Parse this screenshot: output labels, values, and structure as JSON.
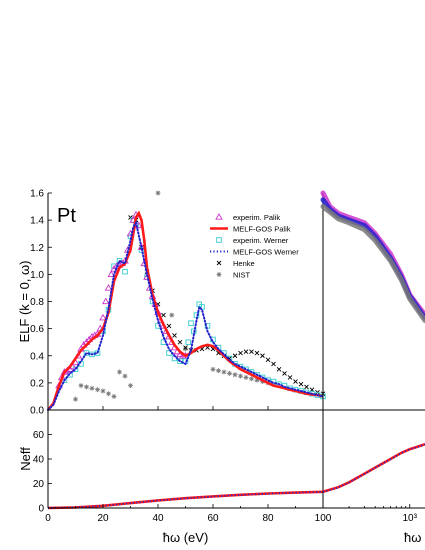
{
  "chart_data": [
    {
      "type": "line",
      "panel": "ELF linear energy range",
      "element_label": "Pt",
      "xlabel": "ħω (eV)",
      "ylabel": "ELF (k = 0, ω)",
      "xlim": [
        0,
        100
      ],
      "ylim": [
        0,
        1.6
      ],
      "x_ticks": [
        0,
        20,
        40,
        60,
        80,
        100
      ],
      "y_ticks": [
        0,
        0.2,
        0.4,
        0.6,
        0.8,
        1.0,
        1.2,
        1.4,
        1.6
      ],
      "y_tick_labels": [
        "0.0",
        "0.2",
        "0.4",
        "0.6",
        "0.8",
        "1.0",
        "1.2",
        "1.4",
        "1.6"
      ],
      "legend_position": "top-right",
      "series": [
        {
          "name": "experim. Palik",
          "marker": "triangle",
          "color": "#cc33cc",
          "x": [
            4,
            5,
            6,
            7,
            8,
            9,
            10,
            11,
            12,
            13,
            14,
            15,
            16,
            17,
            18,
            19,
            20,
            21,
            22,
            23,
            24,
            25,
            26,
            27,
            28,
            29,
            30,
            31,
            32,
            33,
            34,
            35,
            36,
            37,
            38,
            39,
            40,
            41,
            42,
            43,
            44,
            45,
            46,
            47,
            48,
            49,
            50
          ],
          "y": [
            0.18,
            0.24,
            0.28,
            0.29,
            0.3,
            0.32,
            0.35,
            0.4,
            0.45,
            0.48,
            0.5,
            0.52,
            0.54,
            0.55,
            0.56,
            0.6,
            0.68,
            0.8,
            0.9,
            1.0,
            1.04,
            1.06,
            1.07,
            1.08,
            1.1,
            1.18,
            1.3,
            1.4,
            1.44,
            1.36,
            1.2,
            1.08,
            0.98,
            0.9,
            0.84,
            0.78,
            0.72,
            0.66,
            0.62,
            0.58,
            0.54,
            0.5,
            0.46,
            0.43,
            0.41,
            0.4,
            0.4
          ]
        },
        {
          "name": "MELF-GOS Palik",
          "marker": "line",
          "color": "#ff1a1a",
          "x": [
            0,
            2,
            4,
            6,
            8,
            10,
            12,
            14,
            16,
            18,
            20,
            22,
            24,
            26,
            28,
            30,
            31,
            32,
            33,
            34,
            35,
            36,
            38,
            40,
            42,
            44,
            46,
            48,
            50,
            52,
            54,
            56,
            58,
            60,
            62,
            64,
            66,
            68,
            70,
            72,
            74,
            76,
            78,
            80,
            82,
            84,
            86,
            88,
            90,
            92,
            94,
            96,
            98,
            100
          ],
          "y": [
            0.0,
            0.05,
            0.18,
            0.28,
            0.32,
            0.38,
            0.44,
            0.48,
            0.52,
            0.55,
            0.6,
            0.72,
            0.95,
            1.05,
            1.08,
            1.18,
            1.3,
            1.42,
            1.45,
            1.4,
            1.25,
            1.05,
            0.85,
            0.72,
            0.63,
            0.55,
            0.48,
            0.43,
            0.4,
            0.42,
            0.45,
            0.47,
            0.48,
            0.47,
            0.44,
            0.4,
            0.36,
            0.33,
            0.3,
            0.28,
            0.26,
            0.24,
            0.22,
            0.2,
            0.18,
            0.17,
            0.16,
            0.15,
            0.14,
            0.13,
            0.12,
            0.115,
            0.11,
            0.1
          ]
        },
        {
          "name": "experim. Werner",
          "marker": "square",
          "color": "#33cccc",
          "x": [
            6,
            8,
            10,
            12,
            14,
            16,
            18,
            20,
            22,
            24,
            26,
            28,
            30,
            31,
            32,
            34,
            36,
            38,
            40,
            42,
            44,
            46,
            48,
            50,
            51,
            52,
            53,
            54,
            55,
            56,
            58,
            60,
            62,
            64,
            66,
            68,
            70,
            72,
            74,
            76,
            78,
            80,
            82,
            84,
            86,
            88,
            90,
            92,
            94,
            96,
            98,
            100
          ],
          "y": [
            0.22,
            0.26,
            0.3,
            0.34,
            0.42,
            0.41,
            0.42,
            0.58,
            0.74,
            1.06,
            1.1,
            1.02,
            1.28,
            1.4,
            1.36,
            1.18,
            0.98,
            0.8,
            0.62,
            0.5,
            0.42,
            0.38,
            0.36,
            0.36,
            0.5,
            0.64,
            0.58,
            0.7,
            0.78,
            0.76,
            0.62,
            0.52,
            0.46,
            0.42,
            0.38,
            0.34,
            0.32,
            0.3,
            0.28,
            0.26,
            0.24,
            0.22,
            0.21,
            0.19,
            0.18,
            0.16,
            0.15,
            0.14,
            0.13,
            0.12,
            0.11,
            0.1
          ]
        },
        {
          "name": "MELF-GOS Werner",
          "marker": "dotted-line",
          "color": "#2222cc",
          "x": [
            0,
            2,
            4,
            6,
            8,
            10,
            12,
            14,
            16,
            18,
            20,
            22,
            24,
            26,
            28,
            30,
            31,
            32,
            34,
            36,
            38,
            40,
            42,
            44,
            46,
            48,
            50,
            52,
            54,
            55,
            56,
            58,
            60,
            62,
            64,
            66,
            68,
            70,
            72,
            74,
            76,
            78,
            80,
            82,
            84,
            86,
            88,
            90,
            92,
            94,
            96,
            98,
            100
          ],
          "y": [
            0.0,
            0.04,
            0.14,
            0.22,
            0.27,
            0.3,
            0.36,
            0.42,
            0.41,
            0.42,
            0.55,
            0.75,
            1.0,
            1.1,
            1.08,
            1.25,
            1.35,
            1.38,
            1.2,
            1.0,
            0.82,
            0.66,
            0.54,
            0.45,
            0.4,
            0.36,
            0.34,
            0.44,
            0.66,
            0.76,
            0.74,
            0.58,
            0.5,
            0.45,
            0.41,
            0.37,
            0.34,
            0.32,
            0.3,
            0.28,
            0.26,
            0.24,
            0.22,
            0.2,
            0.19,
            0.17,
            0.16,
            0.15,
            0.14,
            0.13,
            0.12,
            0.11,
            0.1
          ]
        },
        {
          "name": "Henke",
          "marker": "x",
          "color": "#000000",
          "x": [
            30,
            32,
            34,
            36,
            38,
            40,
            42,
            44,
            46,
            48,
            50,
            52,
            54,
            56,
            58,
            60,
            62,
            64,
            66,
            68,
            70,
            72,
            74,
            76,
            78,
            80,
            82,
            84,
            86,
            88,
            90,
            92,
            94,
            96,
            98,
            100
          ],
          "y": [
            1.42,
            1.4,
            1.2,
            1.02,
            0.88,
            0.78,
            0.7,
            0.62,
            0.55,
            0.5,
            0.46,
            0.44,
            0.44,
            0.45,
            0.46,
            0.45,
            0.42,
            0.4,
            0.38,
            0.4,
            0.42,
            0.43,
            0.43,
            0.42,
            0.4,
            0.37,
            0.34,
            0.3,
            0.27,
            0.24,
            0.21,
            0.19,
            0.17,
            0.15,
            0.13,
            0.12
          ]
        },
        {
          "name": "NIST",
          "marker": "asterisk",
          "color": "#777777",
          "x": [
            10,
            12,
            14,
            16,
            18,
            20,
            22,
            24,
            26,
            28,
            30,
            40,
            45,
            50,
            60,
            62,
            64,
            66,
            68,
            70,
            72,
            74,
            76,
            78,
            80
          ],
          "y": [
            0.08,
            0.18,
            0.17,
            0.16,
            0.15,
            0.14,
            0.12,
            0.1,
            0.28,
            0.25,
            0.18,
            1.6,
            0.7,
            0.45,
            0.3,
            0.29,
            0.28,
            0.27,
            0.26,
            0.25,
            0.24,
            0.23,
            0.22,
            0.21,
            0.2
          ]
        }
      ]
    },
    {
      "type": "line",
      "panel": "ELF logarithmic energy range",
      "xlabel": "ħω",
      "xscale": "log",
      "xlim": [
        100,
        1500
      ],
      "ylim": [
        0,
        1.6
      ],
      "x_ticks": [
        100,
        1000
      ],
      "x_tick_labels": [
        "10²",
        "10³"
      ],
      "series": [
        {
          "name": "experim. Palik",
          "color": "#cc33cc",
          "x": [
            100,
            120,
            150,
            200,
            300,
            400,
            600,
            800,
            1000,
            1500
          ],
          "y": [
            1.6,
            1.5,
            1.45,
            1.42,
            1.38,
            1.3,
            1.15,
            1.0,
            0.85,
            0.7
          ]
        },
        {
          "name": "MELF-GOS Werner",
          "color": "#2222cc",
          "x": [
            100,
            120,
            150,
            200,
            300,
            400,
            600,
            800,
            1000,
            1500
          ],
          "y": [
            1.55,
            1.48,
            1.43,
            1.4,
            1.36,
            1.28,
            1.12,
            0.98,
            0.84,
            0.68
          ]
        },
        {
          "name": "NIST",
          "color": "#777777",
          "x": [
            100,
            120,
            150,
            200,
            300,
            400,
            600,
            800,
            1000,
            1500
          ],
          "y": [
            1.5,
            1.46,
            1.41,
            1.38,
            1.33,
            1.25,
            1.1,
            0.96,
            0.82,
            0.66
          ]
        }
      ]
    },
    {
      "type": "line",
      "panel": "Neff linear energy range",
      "xlabel": "ħω (eV)",
      "ylabel": "Neff",
      "xlim": [
        0,
        100
      ],
      "ylim": [
        0,
        80
      ],
      "x_ticks": [
        0,
        20,
        40,
        60,
        80,
        100
      ],
      "y_ticks": [
        0,
        20,
        40,
        60
      ],
      "series": [
        {
          "name": "MELF-GOS Palik",
          "color": "#ff1a1a",
          "x": [
            0,
            10,
            20,
            30,
            40,
            50,
            60,
            70,
            80,
            90,
            100
          ],
          "y": [
            0,
            0.5,
            1.8,
            4.0,
            6.2,
            8.0,
            9.5,
            10.8,
            11.8,
            12.6,
            13.2
          ]
        },
        {
          "name": "MELF-GOS Werner",
          "color": "#2222cc",
          "x": [
            0,
            10,
            20,
            30,
            40,
            50,
            60,
            70,
            80,
            90,
            100
          ],
          "y": [
            0,
            0.5,
            1.7,
            3.9,
            6.1,
            7.9,
            9.4,
            10.7,
            11.7,
            12.5,
            13.1
          ]
        }
      ]
    },
    {
      "type": "line",
      "panel": "Neff logarithmic energy range",
      "xlabel": "ħω",
      "xscale": "log",
      "xlim": [
        100,
        1500
      ],
      "ylim": [
        0,
        80
      ],
      "x_ticks": [
        100,
        1000
      ],
      "x_tick_labels": [
        "10²",
        "10³"
      ],
      "series": [
        {
          "name": "MELF-GOS Palik",
          "color": "#ff1a1a",
          "x": [
            100,
            150,
            200,
            300,
            400,
            600,
            800,
            1000,
            1500
          ],
          "y": [
            13.2,
            17,
            21,
            28,
            33,
            40,
            45,
            48,
            52
          ]
        },
        {
          "name": "MELF-GOS Werner",
          "color": "#2222cc",
          "x": [
            100,
            150,
            200,
            300,
            400,
            600,
            800,
            1000,
            1500
          ],
          "y": [
            13.1,
            16.8,
            20.8,
            27.8,
            32.8,
            39.8,
            44.8,
            47.8,
            51.8
          ]
        }
      ]
    }
  ]
}
